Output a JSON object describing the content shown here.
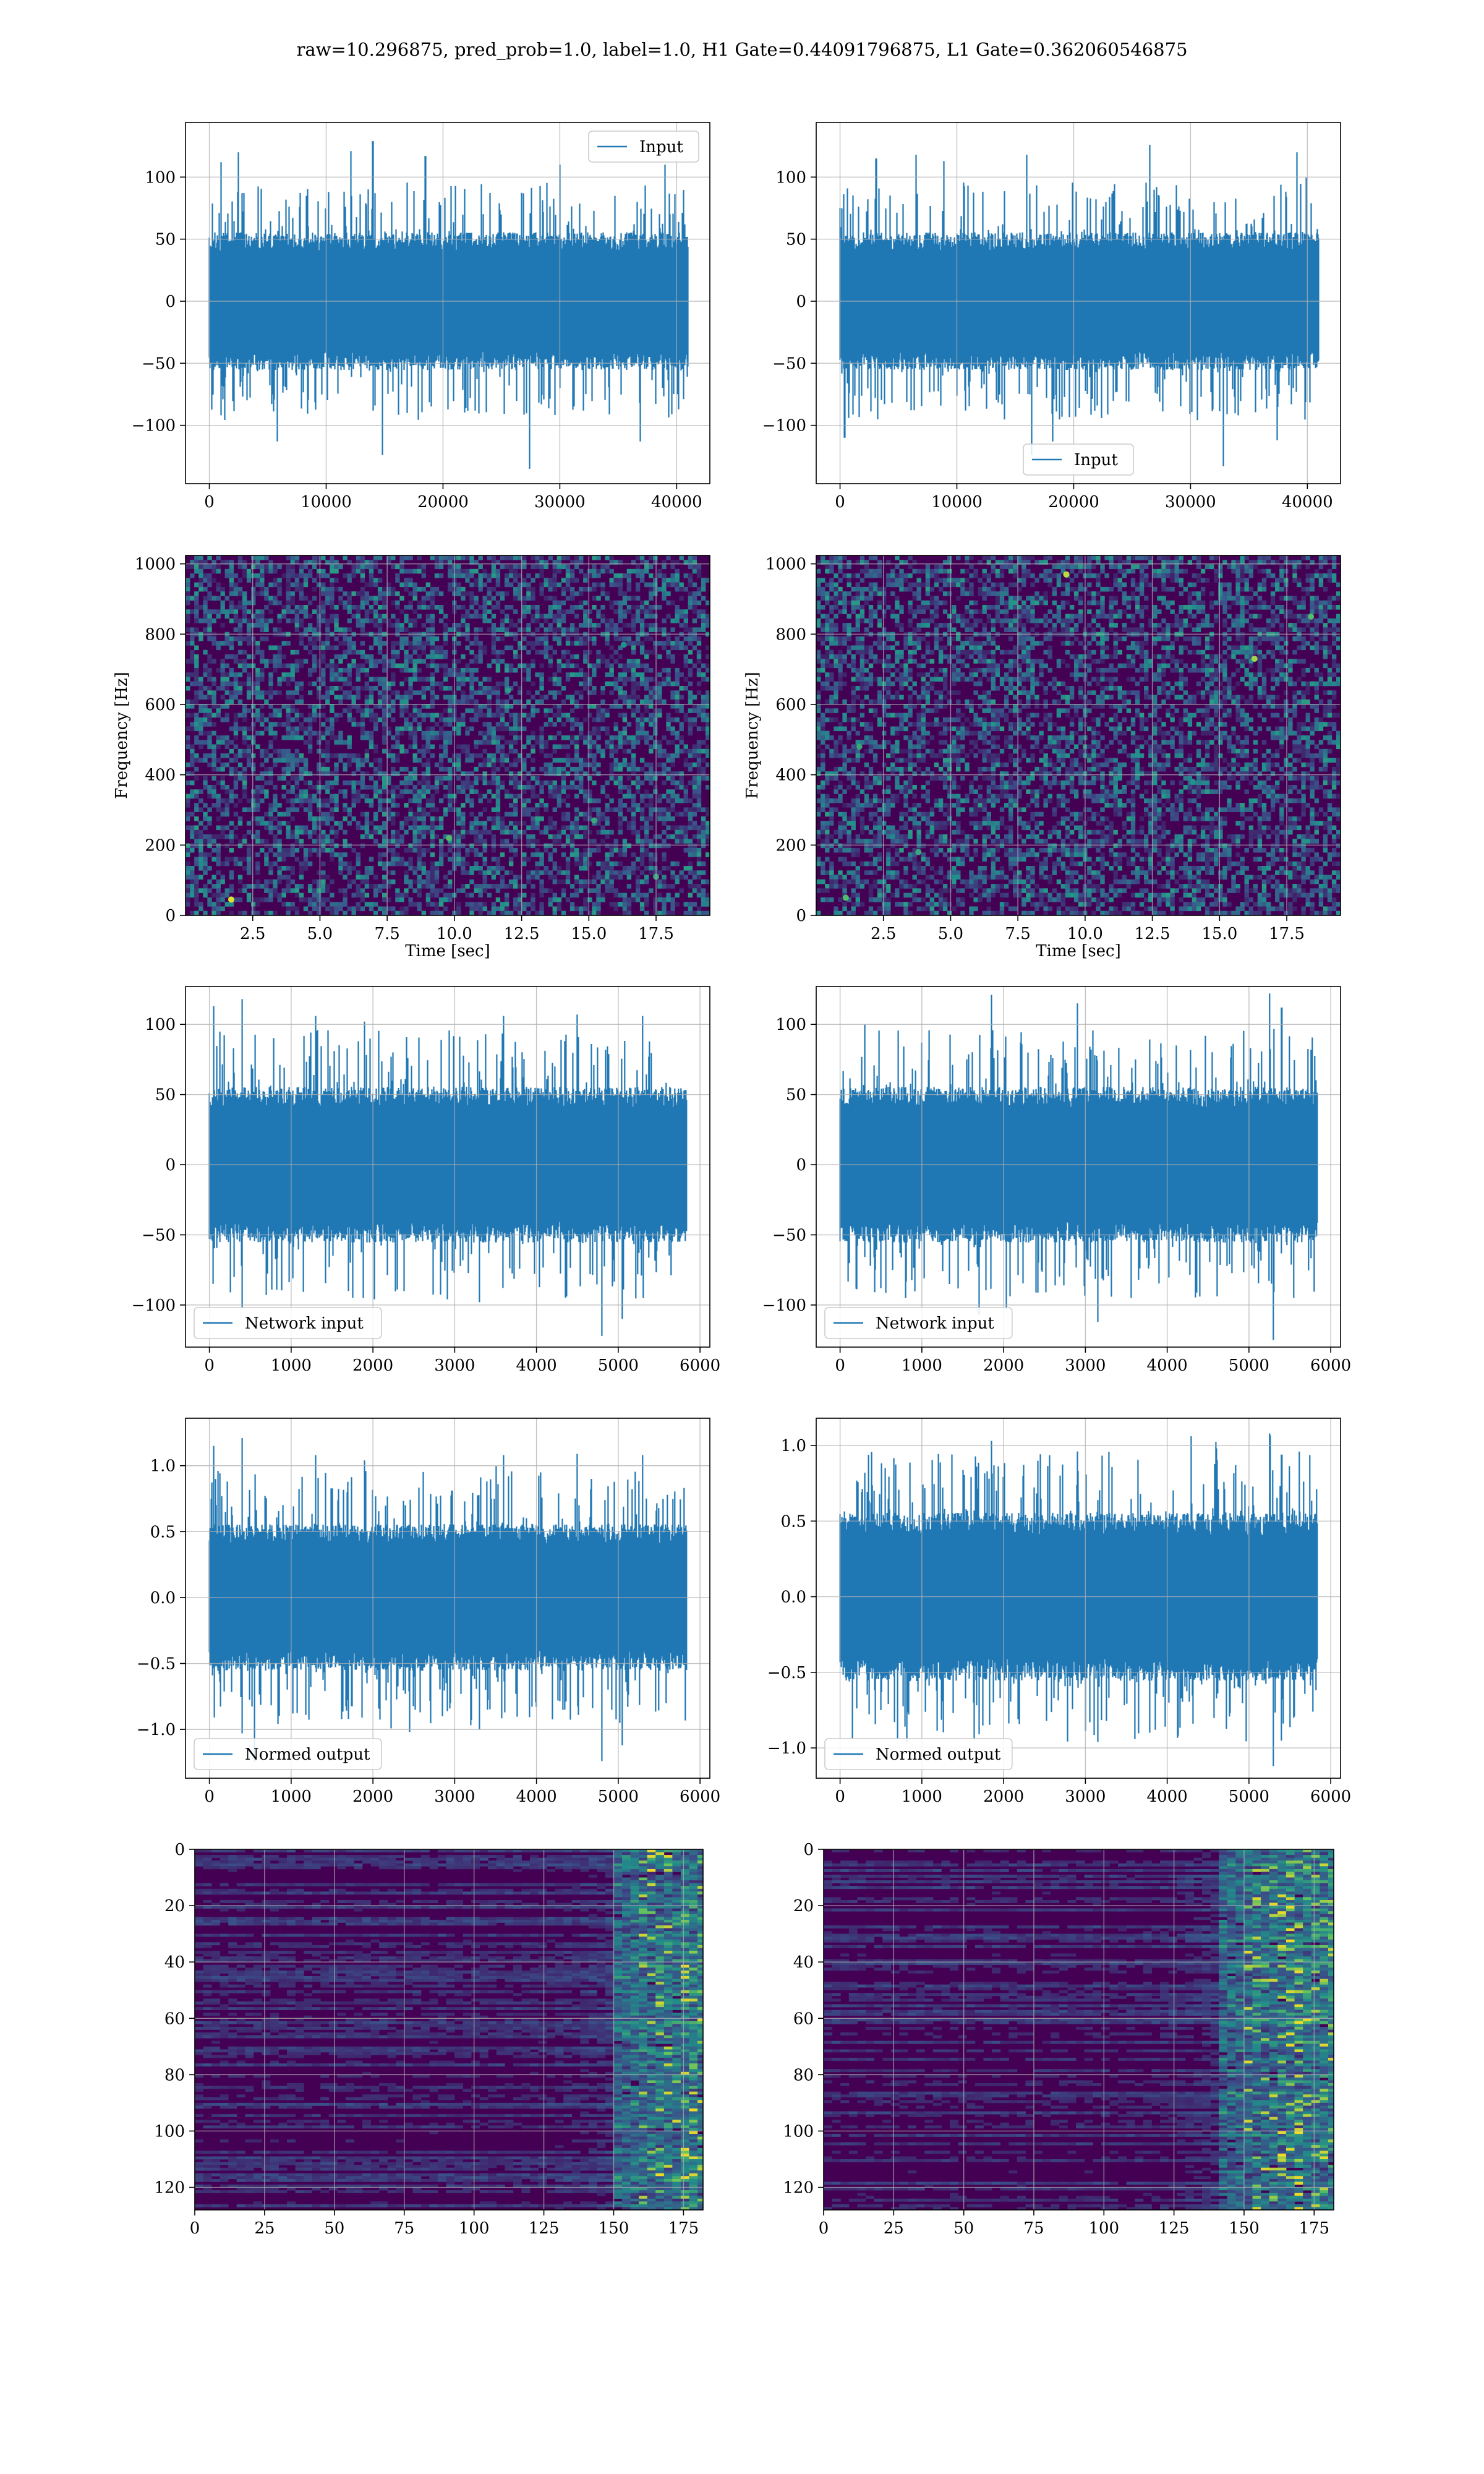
{
  "figure": {
    "suptitle": "raw=10.296875, pred_prob=1.0, label=1.0, H1 Gate=0.44091796875, L1 Gate=0.362060546875"
  },
  "colors": {
    "line": "#1f77b4",
    "grid": "#b0b0b0",
    "viridis_dark": "#440154",
    "viridis_teal": "#21918c",
    "viridis_green": "#5ec962",
    "viridis_yellow": "#fde725"
  },
  "chart_data": [
    {
      "id": "h1-input",
      "type": "line",
      "title": "",
      "xlabel": "",
      "ylabel": "",
      "xlim": [
        -2040,
        42840
      ],
      "ylim": [
        -147,
        144
      ],
      "xticks": [
        0,
        10000,
        20000,
        30000,
        40000
      ],
      "xtick_labels": [
        "0",
        "10000",
        "20000",
        "30000",
        "40000"
      ],
      "yticks": [
        -100,
        -50,
        0,
        50,
        100
      ],
      "ytick_labels": [
        "−100",
        "−50",
        "0",
        "50",
        "100"
      ],
      "grid": true,
      "legend_loc": "upper right",
      "series": [
        {
          "name": "Input",
          "x_range": [
            0,
            40959
          ],
          "n_points": 40960,
          "envelope_peaks": [
            [
              1000,
              112
            ],
            [
              2500,
              120
            ],
            [
              12100,
              121
            ],
            [
              14000,
              129
            ],
            [
              18500,
              117
            ],
            [
              30000,
              110
            ],
            [
              39000,
              110
            ],
            [
              5800,
              -113
            ],
            [
              14800,
              -124
            ],
            [
              27400,
              -135
            ],
            [
              36900,
              -113
            ]
          ]
        }
      ]
    },
    {
      "id": "l1-input",
      "type": "line",
      "title": "",
      "xlabel": "",
      "ylabel": "",
      "xlim": [
        -2040,
        42840
      ],
      "ylim": [
        -147,
        144
      ],
      "xticks": [
        0,
        10000,
        20000,
        30000,
        40000
      ],
      "xtick_labels": [
        "0",
        "10000",
        "20000",
        "30000",
        "40000"
      ],
      "yticks": [
        -100,
        -50,
        0,
        50,
        100
      ],
      "ytick_labels": [
        "−100",
        "−50",
        "0",
        "50",
        "100"
      ],
      "grid": true,
      "legend_loc": "lower center",
      "series": [
        {
          "name": "Input",
          "x_range": [
            0,
            40959
          ],
          "n_points": 40960,
          "envelope_peaks": [
            [
              3100,
              115
            ],
            [
              6500,
              118
            ],
            [
              8900,
              113
            ],
            [
              16000,
              118
            ],
            [
              26500,
              126
            ],
            [
              39100,
              120
            ],
            [
              400,
              -110
            ],
            [
              16400,
              -124
            ],
            [
              18200,
              -113
            ],
            [
              32800,
              -133
            ],
            [
              37400,
              -112
            ]
          ]
        }
      ]
    },
    {
      "id": "h1-spectrogram",
      "type": "heatmap",
      "title": "",
      "xlabel": "Time [sec]",
      "ylabel": "Frequency [Hz]",
      "xlim": [
        0,
        19.5
      ],
      "ylim": [
        0,
        1024
      ],
      "xticks": [
        2.5,
        5.0,
        7.5,
        10.0,
        12.5,
        15.0,
        17.5
      ],
      "xtick_labels": [
        "2.5",
        "5.0",
        "7.5",
        "10.0",
        "12.5",
        "15.0",
        "17.5"
      ],
      "yticks": [
        0,
        200,
        400,
        600,
        800,
        1000
      ],
      "ytick_labels": [
        "0",
        "200",
        "400",
        "600",
        "800",
        "1000"
      ],
      "grid": true,
      "colormap": "viridis",
      "hotspots": [
        [
          1.7,
          45,
          0.95
        ],
        [
          9.8,
          220,
          0.7
        ],
        [
          15.2,
          270,
          0.6
        ],
        [
          12.0,
          640,
          0.55
        ],
        [
          16.3,
          770,
          0.5
        ],
        [
          17.5,
          110,
          0.6
        ]
      ]
    },
    {
      "id": "l1-spectrogram",
      "type": "heatmap",
      "title": "",
      "xlabel": "Time [sec]",
      "ylabel": "Frequency [Hz]",
      "xlim": [
        0,
        19.5
      ],
      "ylim": [
        0,
        1024
      ],
      "xticks": [
        2.5,
        5.0,
        7.5,
        10.0,
        12.5,
        15.0,
        17.5
      ],
      "xtick_labels": [
        "2.5",
        "5.0",
        "7.5",
        "10.0",
        "12.5",
        "15.0",
        "17.5"
      ],
      "yticks": [
        0,
        200,
        400,
        600,
        800,
        1000
      ],
      "ytick_labels": [
        "0",
        "200",
        "400",
        "600",
        "800",
        "1000"
      ],
      "grid": true,
      "colormap": "viridis",
      "hotspots": [
        [
          9.3,
          970,
          0.9
        ],
        [
          16.3,
          730,
          0.85
        ],
        [
          18.4,
          850,
          0.7
        ],
        [
          1.6,
          480,
          0.6
        ],
        [
          3.8,
          180,
          0.6
        ],
        [
          1.1,
          50,
          0.7
        ],
        [
          14.0,
          380,
          0.5
        ]
      ]
    },
    {
      "id": "h1-network-input",
      "type": "line",
      "title": "",
      "xlabel": "",
      "ylabel": "",
      "xlim": [
        -292,
        6120
      ],
      "ylim": [
        -130,
        127
      ],
      "xticks": [
        0,
        1000,
        2000,
        3000,
        4000,
        5000,
        6000
      ],
      "xtick_labels": [
        "0",
        "1000",
        "2000",
        "3000",
        "4000",
        "5000",
        "6000"
      ],
      "yticks": [
        -100,
        -50,
        0,
        50,
        100
      ],
      "ytick_labels": [
        "−100",
        "−50",
        "0",
        "50",
        "100"
      ],
      "grid": true,
      "legend_loc": "lower left",
      "series": [
        {
          "name": "Network input",
          "x_range": [
            0,
            5835
          ],
          "n_points": 5836,
          "envelope_peaks": [
            [
              50,
              113
            ],
            [
              400,
              118
            ],
            [
              1300,
              106
            ],
            [
              1900,
              102
            ],
            [
              3600,
              106
            ],
            [
              4500,
              107
            ],
            [
              5300,
              106
            ],
            [
              4800,
              -122
            ],
            [
              400,
              -102
            ],
            [
              5050,
              -110
            ],
            [
              3300,
              -98
            ],
            [
              1700,
              -90
            ]
          ]
        }
      ]
    },
    {
      "id": "l1-network-input",
      "type": "line",
      "title": "",
      "xlabel": "",
      "ylabel": "",
      "xlim": [
        -292,
        6120
      ],
      "ylim": [
        -130,
        127
      ],
      "xticks": [
        0,
        1000,
        2000,
        3000,
        4000,
        5000,
        6000
      ],
      "xtick_labels": [
        "0",
        "1000",
        "2000",
        "3000",
        "4000",
        "5000",
        "6000"
      ],
      "yticks": [
        -100,
        -50,
        0,
        50,
        100
      ],
      "ytick_labels": [
        "−100",
        "−50",
        "0",
        "50",
        "100"
      ],
      "grid": true,
      "legend_loc": "lower left",
      "series": [
        {
          "name": "Network input",
          "x_range": [
            0,
            5835
          ],
          "n_points": 5836,
          "envelope_peaks": [
            [
              300,
              100
            ],
            [
              1850,
              121
            ],
            [
              2900,
              115
            ],
            [
              5250,
              122
            ],
            [
              5400,
              112
            ],
            [
              5300,
              -125
            ],
            [
              3150,
              -112
            ],
            [
              1700,
              -107
            ],
            [
              5550,
              -95
            ],
            [
              500,
              -88
            ]
          ]
        }
      ]
    },
    {
      "id": "h1-normed-output",
      "type": "line",
      "title": "",
      "xlabel": "",
      "ylabel": "",
      "xlim": [
        -292,
        6120
      ],
      "ylim": [
        -1.37,
        1.36
      ],
      "xticks": [
        0,
        1000,
        2000,
        3000,
        4000,
        5000,
        6000
      ],
      "xtick_labels": [
        "0",
        "1000",
        "2000",
        "3000",
        "4000",
        "5000",
        "6000"
      ],
      "yticks": [
        -1.0,
        -0.5,
        0.0,
        0.5,
        1.0
      ],
      "ytick_labels": [
        "−1.0",
        "−0.5",
        "0.0",
        "0.5",
        "1.0"
      ],
      "grid": true,
      "legend_loc": "lower left",
      "series": [
        {
          "name": "Normed output",
          "x_range": [
            0,
            5835
          ],
          "n_points": 5836,
          "envelope_peaks": [
            [
              50,
              1.15
            ],
            [
              400,
              1.21
            ],
            [
              1300,
              1.08
            ],
            [
              1900,
              1.04
            ],
            [
              3600,
              1.08
            ],
            [
              4500,
              1.09
            ],
            [
              5300,
              1.08
            ],
            [
              4800,
              -1.24
            ],
            [
              400,
              -1.03
            ],
            [
              5050,
              -1.12
            ],
            [
              3300,
              -1.0
            ],
            [
              1700,
              -0.92
            ]
          ]
        }
      ]
    },
    {
      "id": "l1-normed-output",
      "type": "line",
      "title": "",
      "xlabel": "",
      "ylabel": "",
      "xlim": [
        -292,
        6120
      ],
      "ylim": [
        -1.2,
        1.18
      ],
      "xticks": [
        0,
        1000,
        2000,
        3000,
        4000,
        5000,
        6000
      ],
      "xtick_labels": [
        "0",
        "1000",
        "2000",
        "3000",
        "4000",
        "5000",
        "6000"
      ],
      "yticks": [
        -1.0,
        -0.5,
        0.0,
        0.5,
        1.0
      ],
      "ytick_labels": [
        "−1.0",
        "−0.5",
        "0.0",
        "0.5",
        "1.0"
      ],
      "grid": true,
      "legend_loc": "lower left",
      "series": [
        {
          "name": "Normed output",
          "x_range": [
            0,
            5835
          ],
          "n_points": 5836,
          "envelope_peaks": [
            [
              300,
              0.82
            ],
            [
              1850,
              1.03
            ],
            [
              2900,
              0.96
            ],
            [
              5250,
              1.08
            ],
            [
              5400,
              0.94
            ],
            [
              5300,
              -1.12
            ],
            [
              3150,
              -0.96
            ],
            [
              1700,
              -0.91
            ],
            [
              5550,
              -0.8
            ],
            [
              500,
              -0.75
            ]
          ]
        }
      ]
    },
    {
      "id": "h1-feature-map",
      "type": "heatmap",
      "title": "",
      "xlabel": "",
      "ylabel": "",
      "xlim": [
        0,
        182
      ],
      "ylim": [
        128,
        0
      ],
      "xticks": [
        0,
        25,
        50,
        75,
        100,
        125,
        150,
        175
      ],
      "xtick_labels": [
        "0",
        "25",
        "50",
        "75",
        "100",
        "125",
        "150",
        "175"
      ],
      "yticks": [
        0,
        20,
        40,
        60,
        80,
        100,
        120
      ],
      "ytick_labels": [
        "0",
        "20",
        "40",
        "60",
        "80",
        "100",
        "120"
      ],
      "grid": true,
      "colormap": "viridis",
      "n_rows": 128,
      "n_cols": 182,
      "activation_band_cols": [
        150,
        178
      ]
    },
    {
      "id": "l1-feature-map",
      "type": "heatmap",
      "title": "",
      "xlabel": "",
      "ylabel": "",
      "xlim": [
        0,
        182
      ],
      "ylim": [
        128,
        0
      ],
      "xticks": [
        0,
        25,
        50,
        75,
        100,
        125,
        150,
        175
      ],
      "xtick_labels": [
        "0",
        "25",
        "50",
        "75",
        "100",
        "125",
        "150",
        "175"
      ],
      "yticks": [
        0,
        20,
        40,
        60,
        80,
        100,
        120
      ],
      "ytick_labels": [
        "0",
        "20",
        "40",
        "60",
        "80",
        "100",
        "120"
      ],
      "grid": true,
      "colormap": "viridis",
      "n_rows": 128,
      "n_cols": 182,
      "activation_band_cols": [
        140,
        182
      ]
    }
  ]
}
